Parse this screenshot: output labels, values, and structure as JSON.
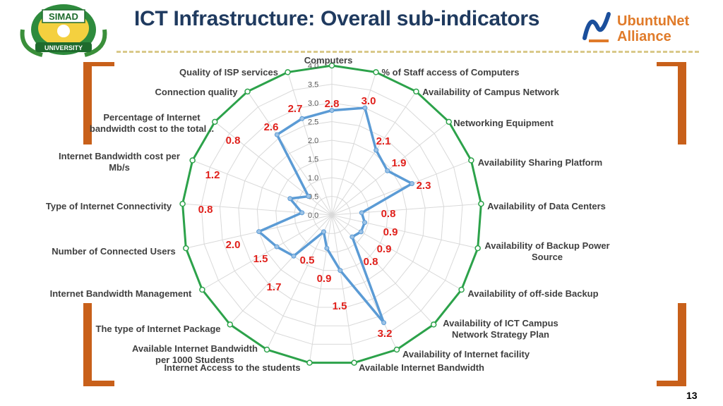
{
  "header": {
    "title": "ICT Infrastructure: Overall sub-indicators",
    "left_logo_text": "SIMAD",
    "left_logo_subtext": "UNIVERSITY",
    "right_logo_line1": "UbuntuNet",
    "right_logo_line2": "Alliance"
  },
  "page_number": "13",
  "colors": {
    "accent_orange": "#c8601a",
    "grid_green": "#2ca24a",
    "series_blue": "#5b9bd5",
    "value_red": "#e0201b",
    "title_navy": "#1f3a5f"
  },
  "chart_data": {
    "type": "radar",
    "title": "",
    "rlim": [
      0,
      4.0
    ],
    "ticks": [
      "0.0",
      "0.5",
      "1.0",
      "1.5",
      "2.0",
      "2.5",
      "3.0",
      "3.5",
      "4.0"
    ],
    "grid": true,
    "categories": [
      "Computers",
      "% of Staff access of Computers",
      "Availability of Campus Network",
      "Networking Equipment",
      "Availability Sharing Platform",
      "Availability of Data Centers",
      "Availability of Backup Power Source",
      "Availability of off-side Backup",
      "Availability of ICT Campus Network Strategy Plan",
      "Availability of Internet facility",
      "Available Internet Bandwidth",
      "Internet Access to the students",
      "Available Internet Bandwidth per 1000 Students",
      "The type of Internet Package",
      "Internet Bandwidth Management",
      "Number of Connected Users",
      "Type of Internet Connectivity",
      "Internet Bandwidth cost per Mb/s",
      "Percentage of Internet bandwidth cost to the total ..",
      "Connection quality",
      "Quality of ISP services"
    ],
    "series": [
      {
        "values": [
          2.8,
          3.0,
          2.1,
          1.9,
          2.3,
          0.8,
          0.9,
          0.9,
          0.8,
          3.2,
          1.5,
          0.9,
          0.5,
          1.5,
          1.7,
          2.0,
          0.8,
          1.2,
          0.8,
          2.6,
          2.7
        ]
      }
    ],
    "data_labels": [
      "2.8",
      "3.0",
      "2.1",
      "1.9",
      "2.3",
      "0.8",
      "0.9",
      "0.9",
      "0.8",
      "3.2",
      "1.5",
      "0.9",
      "0.5",
      "1.5",
      "1.7",
      "2.0",
      "0.8",
      "1.2",
      "0.8",
      "2.6",
      "2.7"
    ]
  }
}
